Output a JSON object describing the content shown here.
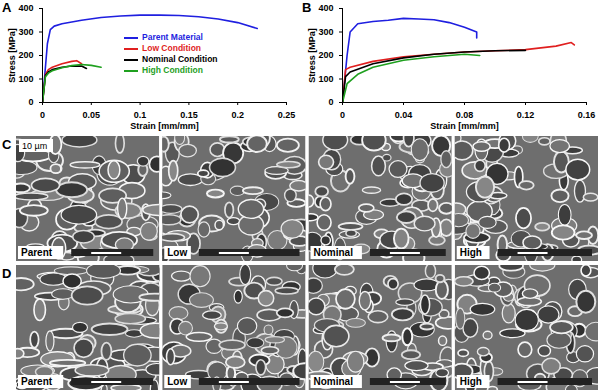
{
  "chart_data": [
    {
      "type": "line",
      "title": "A",
      "xlabel": "Strain [mm/mm]",
      "ylabel": "Stress [MPa]",
      "xlim": [
        0,
        0.25
      ],
      "xticks": [
        0,
        0.05,
        0.1,
        0.15,
        0.2,
        0.25
      ],
      "ylim": [
        0,
        400
      ],
      "yticks": [
        0,
        100,
        200,
        300,
        400
      ],
      "legend": "center",
      "series": [
        {
          "name": "Parent Material",
          "color": "#1f1fe0",
          "x": [
            0,
            0.005,
            0.008,
            0.012,
            0.02,
            0.04,
            0.06,
            0.08,
            0.1,
            0.12,
            0.14,
            0.16,
            0.18,
            0.2,
            0.22
          ],
          "values": [
            0,
            250,
            310,
            325,
            335,
            350,
            362,
            368,
            372,
            372,
            370,
            365,
            355,
            340,
            315
          ]
        },
        {
          "name": "Low Condition",
          "color": "#e01f1f",
          "x": [
            0,
            0.003,
            0.006,
            0.01,
            0.02,
            0.03,
            0.035,
            0.04
          ],
          "values": [
            0,
            120,
            140,
            150,
            165,
            175,
            178,
            165
          ]
        },
        {
          "name": "Nominal Condition",
          "color": "#000000",
          "x": [
            0,
            0.003,
            0.006,
            0.01,
            0.02,
            0.03,
            0.04,
            0.045
          ],
          "values": [
            0,
            115,
            130,
            140,
            150,
            155,
            155,
            145
          ]
        },
        {
          "name": "High Condition",
          "color": "#1fa01f",
          "x": [
            0,
            0.003,
            0.006,
            0.01,
            0.02,
            0.03,
            0.04,
            0.05,
            0.06
          ],
          "values": [
            0,
            110,
            125,
            135,
            148,
            157,
            162,
            158,
            150
          ]
        }
      ]
    },
    {
      "type": "line",
      "title": "B",
      "xlabel": "Strain [mm/mm]",
      "ylabel": "Stress [MPa]",
      "xlim": [
        0,
        0.16
      ],
      "xticks": [
        0,
        0.04,
        0.08,
        0.12,
        0.16
      ],
      "ylim": [
        0,
        400
      ],
      "yticks": [
        0,
        100,
        200,
        300,
        400
      ],
      "series": [
        {
          "name": "Parent Material",
          "color": "#1f1fe0",
          "x": [
            0,
            0.003,
            0.005,
            0.01,
            0.02,
            0.03,
            0.04,
            0.05,
            0.06,
            0.07,
            0.08,
            0.088,
            0.088
          ],
          "values": [
            0,
            200,
            300,
            335,
            345,
            350,
            358,
            355,
            352,
            340,
            320,
            300,
            275
          ]
        },
        {
          "name": "Low Condition",
          "color": "#e01f1f",
          "x": [
            0,
            0.002,
            0.005,
            0.02,
            0.04,
            0.06,
            0.08,
            0.1,
            0.12,
            0.14,
            0.15,
            0.152
          ],
          "values": [
            0,
            140,
            150,
            175,
            195,
            205,
            215,
            220,
            225,
            240,
            255,
            245
          ]
        },
        {
          "name": "Nominal Condition",
          "color": "#000000",
          "x": [
            0,
            0.002,
            0.005,
            0.02,
            0.04,
            0.06,
            0.08,
            0.1,
            0.12
          ],
          "values": [
            0,
            110,
            130,
            165,
            190,
            205,
            215,
            220,
            222
          ]
        },
        {
          "name": "High Condition",
          "color": "#1fa01f",
          "x": [
            0,
            0.003,
            0.01,
            0.02,
            0.04,
            0.06,
            0.08,
            0.09
          ],
          "values": [
            0,
            80,
            120,
            150,
            180,
            195,
            205,
            200
          ]
        }
      ]
    }
  ],
  "images": {
    "rows": [
      {
        "panel": "C",
        "scale_label": "10 µm",
        "labels": [
          "Parent",
          "Low",
          "Nominal",
          "High"
        ]
      },
      {
        "panel": "D",
        "labels": [
          "Parent",
          "Low",
          "Nominal",
          "High"
        ]
      }
    ]
  }
}
